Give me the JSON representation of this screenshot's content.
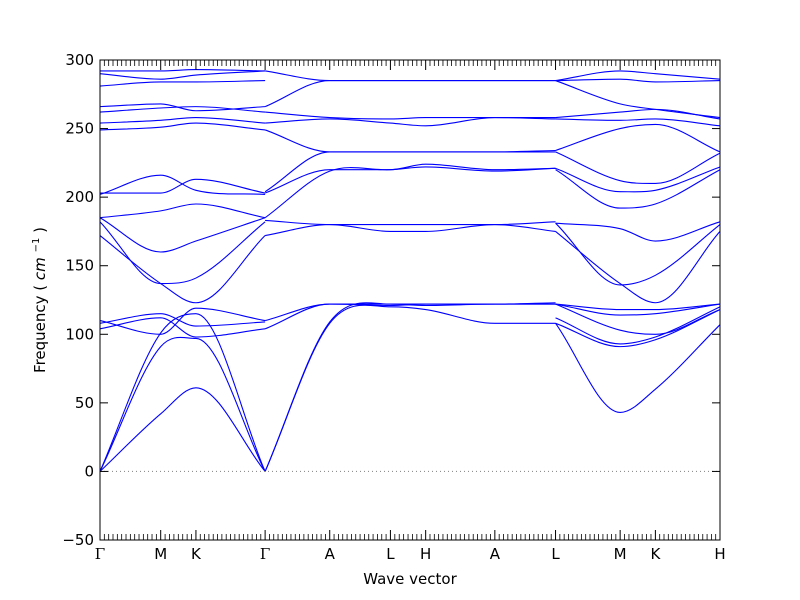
{
  "chart_data": {
    "type": "line",
    "xlabel": "Wave vector",
    "ylabel": "Frequency",
    "ylabel_unit": "cm",
    "ylabel_unit_exp": "−1",
    "ylim": [
      -50,
      300
    ],
    "yticks": [
      -50,
      0,
      50,
      100,
      150,
      200,
      250,
      300
    ],
    "xlim": [
      0,
      9.5
    ],
    "high_symmetry_points": [
      {
        "label": "Γ",
        "x": 0
      },
      {
        "label": "M",
        "x": 0.93
      },
      {
        "label": "K",
        "x": 1.47
      },
      {
        "label": "Γ",
        "x": 2.53
      },
      {
        "label": "A",
        "x": 3.52
      },
      {
        "label": "L",
        "x": 4.45
      },
      {
        "label": "H",
        "x": 4.99
      },
      {
        "label": "A",
        "x": 6.05
      },
      {
        "label": "L",
        "x": 6.98
      },
      {
        "label": "M",
        "x": 7.97
      },
      {
        "label": "K",
        "x": 8.51
      },
      {
        "label": "H",
        "x": 9.5
      }
    ],
    "zero_line": true,
    "line_color": "#0000ff",
    "zero_line_color": "#808080",
    "series": [
      {
        "x": [
          0,
          0.93,
          1.47,
          2.53
        ],
        "y": [
          0,
          42,
          61,
          0
        ]
      },
      {
        "x": [
          0,
          0.93,
          1.47,
          2.53
        ],
        "y": [
          0,
          91,
          97,
          0
        ]
      },
      {
        "x": [
          0,
          0.93,
          1.47,
          2.53
        ],
        "y": [
          0,
          101,
          115,
          0
        ]
      },
      {
        "x": [
          0,
          0.93,
          1.47,
          2.53
        ],
        "y": [
          104,
          112,
          98,
          104
        ]
      },
      {
        "x": [
          0,
          0.93,
          1.47,
          2.53
        ],
        "y": [
          108,
          115,
          106,
          109
        ]
      },
      {
        "x": [
          0,
          0.93,
          1.47,
          2.53
        ],
        "y": [
          110,
          100,
          119,
          110
        ]
      },
      {
        "x": [
          0,
          0.93,
          1.47,
          2.53
        ],
        "y": [
          172,
          137,
          123,
          172
        ]
      },
      {
        "x": [
          0,
          0.93,
          1.47,
          2.53
        ],
        "y": [
          182,
          137,
          141,
          182
        ]
      },
      {
        "x": [
          0,
          0.93,
          1.47,
          2.53
        ],
        "y": [
          185,
          160,
          168,
          185
        ]
      },
      {
        "x": [
          0,
          0.93,
          1.47,
          2.53
        ],
        "y": [
          185,
          190,
          195,
          185
        ]
      },
      {
        "x": [
          0,
          0.93,
          1.47,
          2.53
        ],
        "y": [
          202,
          216,
          205,
          202
        ]
      },
      {
        "x": [
          0,
          0.93,
          1.47,
          2.53
        ],
        "y": [
          203,
          203,
          213,
          203
        ]
      },
      {
        "x": [
          0,
          0.93,
          1.47,
          2.53
        ],
        "y": [
          249,
          251,
          254,
          249
        ]
      },
      {
        "x": [
          0,
          0.93,
          1.47,
          2.53
        ],
        "y": [
          254,
          256,
          258,
          254
        ]
      },
      {
        "x": [
          0,
          0.93,
          1.47,
          2.53
        ],
        "y": [
          262,
          265,
          266,
          262
        ]
      },
      {
        "x": [
          0,
          0.93,
          1.47,
          2.53
        ],
        "y": [
          266,
          268,
          263,
          266
        ]
      },
      {
        "x": [
          0,
          0.93,
          1.47,
          2.53
        ],
        "y": [
          281,
          284,
          284,
          285
        ]
      },
      {
        "x": [
          0,
          0.93,
          1.47,
          2.53
        ],
        "y": [
          290,
          286,
          289,
          292
        ]
      },
      {
        "x": [
          0,
          0.93,
          1.47,
          2.53
        ],
        "y": [
          292,
          292,
          293,
          292
        ]
      },
      {
        "x": [
          2.53,
          3.52,
          4.45,
          4.99,
          6.05,
          6.98
        ],
        "y": [
          0,
          108,
          120,
          118,
          108,
          108
        ]
      },
      {
        "x": [
          2.53,
          3.52,
          4.45,
          4.99,
          6.05,
          6.98
        ],
        "y": [
          0,
          109,
          122,
          121,
          122,
          122
        ]
      },
      {
        "x": [
          2.53,
          3.52,
          4.45,
          4.99,
          6.05,
          6.98
        ],
        "y": [
          104,
          122,
          122,
          122,
          122,
          122
        ]
      },
      {
        "x": [
          2.53,
          3.52,
          4.45,
          4.99,
          6.05,
          6.98
        ],
        "y": [
          110,
          122,
          121,
          122,
          122,
          123
        ]
      },
      {
        "x": [
          2.53,
          3.52,
          4.45,
          4.99,
          6.05,
          6.98
        ],
        "y": [
          172,
          180,
          175,
          175,
          180,
          175
        ]
      },
      {
        "x": [
          2.53,
          3.52,
          4.45,
          4.99,
          6.05,
          6.98
        ],
        "y": [
          183,
          180,
          180,
          180,
          180,
          182
        ]
      },
      {
        "x": [
          2.53,
          3.52,
          4.45,
          4.99,
          6.05,
          6.98
        ],
        "y": [
          185,
          219,
          220,
          222,
          219,
          221
        ]
      },
      {
        "x": [
          2.53,
          3.52,
          4.45,
          4.99,
          6.05,
          6.98
        ],
        "y": [
          203,
          220,
          220,
          224,
          220,
          221
        ]
      },
      {
        "x": [
          2.53,
          3.52,
          4.45,
          4.99,
          6.05,
          6.98
        ],
        "y": [
          204,
          233,
          233,
          233,
          233,
          233
        ]
      },
      {
        "x": [
          2.53,
          3.52,
          4.45,
          4.99,
          6.05,
          6.98
        ],
        "y": [
          249,
          233,
          233,
          233,
          233,
          234
        ]
      },
      {
        "x": [
          2.53,
          3.52,
          4.45,
          4.99,
          6.05,
          6.98
        ],
        "y": [
          254,
          257,
          254,
          252,
          258,
          257
        ]
      },
      {
        "x": [
          2.53,
          3.52,
          4.45,
          4.99,
          6.05,
          6.98
        ],
        "y": [
          262,
          258,
          257,
          258,
          258,
          258
        ]
      },
      {
        "x": [
          2.53,
          3.52,
          4.45,
          4.99,
          6.05,
          6.98
        ],
        "y": [
          266,
          285,
          285,
          285,
          285,
          285
        ]
      },
      {
        "x": [
          2.53,
          3.52,
          4.45,
          4.99,
          6.05,
          6.98
        ],
        "y": [
          292,
          285,
          285,
          285,
          285,
          285
        ]
      },
      {
        "x": [
          6.98,
          7.97,
          8.51,
          9.5
        ],
        "y": [
          108,
          43,
          60,
          107
        ]
      },
      {
        "x": [
          6.98,
          7.97,
          8.51,
          9.5
        ],
        "y": [
          108,
          91,
          96,
          118
        ]
      },
      {
        "x": [
          6.98,
          7.97,
          8.51,
          9.5
        ],
        "y": [
          112,
          93,
          98,
          120
        ]
      },
      {
        "x": [
          6.98,
          7.97,
          8.51,
          9.5
        ],
        "y": [
          122,
          103,
          100,
          118
        ]
      },
      {
        "x": [
          6.98,
          7.97,
          8.51,
          9.5
        ],
        "y": [
          122,
          114,
          115,
          122
        ]
      },
      {
        "x": [
          6.98,
          7.97,
          8.51,
          9.5
        ],
        "y": [
          122,
          118,
          118,
          122
        ]
      },
      {
        "x": [
          6.98,
          7.97,
          8.51,
          9.5
        ],
        "y": [
          175,
          137,
          123,
          175
        ]
      },
      {
        "x": [
          6.98,
          7.97,
          8.51,
          9.5
        ],
        "y": [
          181,
          136,
          143,
          180
        ]
      },
      {
        "x": [
          6.98,
          7.97,
          8.51,
          9.5
        ],
        "y": [
          181,
          177,
          168,
          182
        ]
      },
      {
        "x": [
          6.98,
          7.97,
          8.51,
          9.5
        ],
        "y": [
          220,
          192,
          195,
          220
        ]
      },
      {
        "x": [
          6.98,
          7.97,
          8.51,
          9.5
        ],
        "y": [
          221,
          204,
          205,
          222
        ]
      },
      {
        "x": [
          6.98,
          7.97,
          8.51,
          9.5
        ],
        "y": [
          233,
          212,
          210,
          232
        ]
      },
      {
        "x": [
          6.98,
          7.97,
          8.51,
          9.5
        ],
        "y": [
          234,
          250,
          253,
          233
        ]
      },
      {
        "x": [
          6.98,
          7.97,
          8.51,
          9.5
        ],
        "y": [
          257,
          256,
          257,
          252
        ]
      },
      {
        "x": [
          6.98,
          7.97,
          8.51,
          9.5
        ],
        "y": [
          258,
          262,
          264,
          257
        ]
      },
      {
        "x": [
          6.98,
          7.97,
          8.51,
          9.5
        ],
        "y": [
          285,
          268,
          264,
          258
        ]
      },
      {
        "x": [
          6.98,
          7.97,
          8.51,
          9.5
        ],
        "y": [
          285,
          286,
          284,
          285
        ]
      },
      {
        "x": [
          6.98,
          7.97,
          8.51,
          9.5
        ],
        "y": [
          285,
          292,
          290,
          286
        ]
      }
    ]
  }
}
